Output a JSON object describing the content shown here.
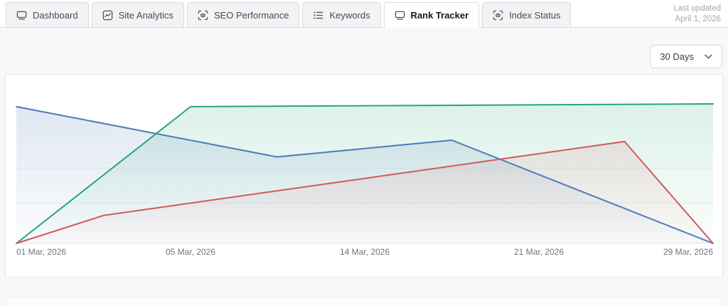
{
  "tab_bar": {
    "tabs": [
      {
        "label": "Dashboard",
        "slug": "dashboard",
        "icon": "monitor-icon",
        "active": false
      },
      {
        "label": "Site Analytics",
        "slug": "site-analytics",
        "icon": "chart-icon",
        "active": false
      },
      {
        "label": "SEO Performance",
        "slug": "seo-performance",
        "icon": "scan-eye-icon",
        "active": false
      },
      {
        "label": "Keywords",
        "slug": "keywords",
        "icon": "list-icon",
        "active": false
      },
      {
        "label": "Rank Tracker",
        "slug": "rank-tracker",
        "icon": "monitor-icon",
        "active": true
      },
      {
        "label": "Index Status",
        "slug": "index-status",
        "icon": "scan-eye-icon",
        "active": false
      }
    ]
  },
  "last_updated": {
    "label": "Last updated",
    "date": "April 1, 2026"
  },
  "range_dropdown": {
    "value": "30 Days",
    "icon": "chevron-down-icon"
  },
  "chart_data": {
    "type": "area",
    "title": "",
    "xlabel": "",
    "ylabel": "",
    "legend": "none",
    "ylim": [
      0,
      100
    ],
    "grid": {
      "horizontal_lines_at_value": [
        29,
        54
      ]
    },
    "x_ticks": [
      {
        "label": "01 Mar, 2026",
        "pos": 0,
        "align": "start"
      },
      {
        "label": "05 Mar, 2026",
        "pos": 0.25,
        "align": "middle"
      },
      {
        "label": "14 Mar, 2026",
        "pos": 0.5,
        "align": "middle"
      },
      {
        "label": "21 Mar, 2026",
        "pos": 0.75,
        "align": "middle"
      },
      {
        "label": "29 Mar, 2026",
        "pos": 1,
        "align": "end"
      }
    ],
    "series": [
      {
        "name": "series-blue",
        "color": "#4f7ab8",
        "fill_opacity_top": 0.18,
        "points": [
          [
            0,
            98
          ],
          [
            0.374,
            62
          ],
          [
            0.625,
            74
          ],
          [
            1,
            0
          ]
        ]
      },
      {
        "name": "series-green",
        "color": "#29a57b",
        "fill_opacity_top": 0.16,
        "points": [
          [
            0,
            0
          ],
          [
            0.25,
            98
          ],
          [
            1,
            100
          ]
        ]
      },
      {
        "name": "series-red",
        "color": "#d2595c",
        "fill_opacity_top": 0.13,
        "points": [
          [
            0,
            0
          ],
          [
            0.125,
            20
          ],
          [
            0.873,
            73
          ],
          [
            1,
            0
          ]
        ]
      }
    ]
  }
}
